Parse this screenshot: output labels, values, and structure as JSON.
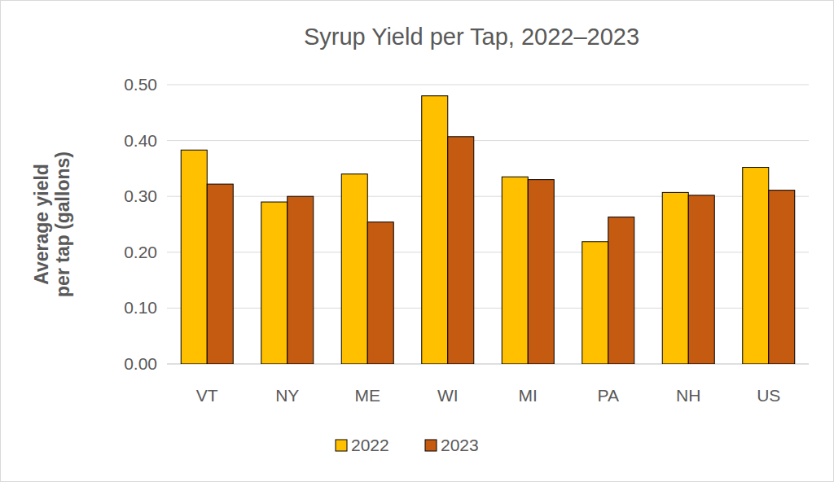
{
  "chart_data": {
    "type": "bar",
    "title": "Syrup Yield per Tap, 2022–2023",
    "y_label": "Average yield per tap (gallons)",
    "categories": [
      "VT",
      "NY",
      "ME",
      "WI",
      "MI",
      "PA",
      "NH",
      "US"
    ],
    "series": [
      {
        "name": "2022",
        "color": "#ffc000",
        "values": [
          0.383,
          0.29,
          0.34,
          0.48,
          0.335,
          0.219,
          0.307,
          0.352
        ]
      },
      {
        "name": "2023",
        "color": "#c55a11",
        "values": [
          0.322,
          0.3,
          0.254,
          0.407,
          0.33,
          0.263,
          0.302,
          0.311
        ]
      }
    ],
    "ylim": [
      0,
      0.5
    ],
    "yticks": [
      {
        "value": 0,
        "label": "0.00"
      },
      {
        "value": 0.1,
        "label": "0.10"
      },
      {
        "value": 0.2,
        "label": "0.20"
      },
      {
        "value": 0.3,
        "label": "0.30"
      },
      {
        "value": 0.4,
        "label": "0.40"
      },
      {
        "value": 0.5,
        "label": "0.50"
      }
    ],
    "grid": true,
    "legend": "bottom"
  }
}
